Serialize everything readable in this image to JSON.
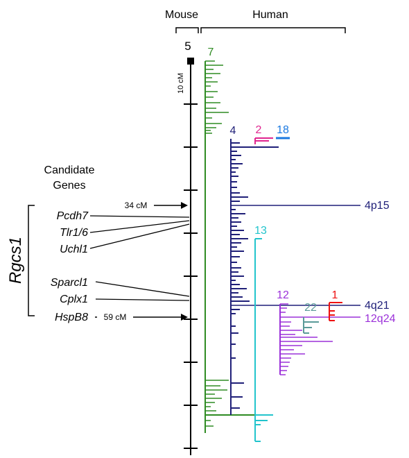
{
  "headers": {
    "mouse": "Mouse",
    "human": "Human"
  },
  "mouse_chromosome": {
    "number": "5",
    "scale_label": "10 cM",
    "marker_34": "34 cM",
    "marker_59": "59 cM"
  },
  "candidate_section": {
    "title_line1": "Candidate",
    "title_line2": "Genes",
    "locus": "Rgcs1",
    "genes": [
      "Pcdh7",
      "Tlr1/6",
      "Uchl1",
      "Sparcl1",
      "Cplx1",
      "HspB8"
    ]
  },
  "human_chromosomes": [
    {
      "number": "7",
      "color": "#2e8b22"
    },
    {
      "number": "4",
      "color": "#1f1f78"
    },
    {
      "number": "2",
      "color": "#e0258f"
    },
    {
      "number": "18",
      "color": "#1a78e0"
    },
    {
      "number": "13",
      "color": "#22c4cc"
    },
    {
      "number": "12",
      "color": "#9b30d9"
    },
    {
      "number": "22",
      "color": "#5a9a98"
    },
    {
      "number": "1",
      "color": "#ee1111"
    }
  ],
  "band_labels": {
    "band_4p15": {
      "text": "4p15",
      "color": "#1f1f78"
    },
    "band_4q21": {
      "text": "4q21",
      "color": "#1f1f78"
    },
    "band_12q24": {
      "text": "12q24",
      "color": "#9b30d9"
    }
  }
}
